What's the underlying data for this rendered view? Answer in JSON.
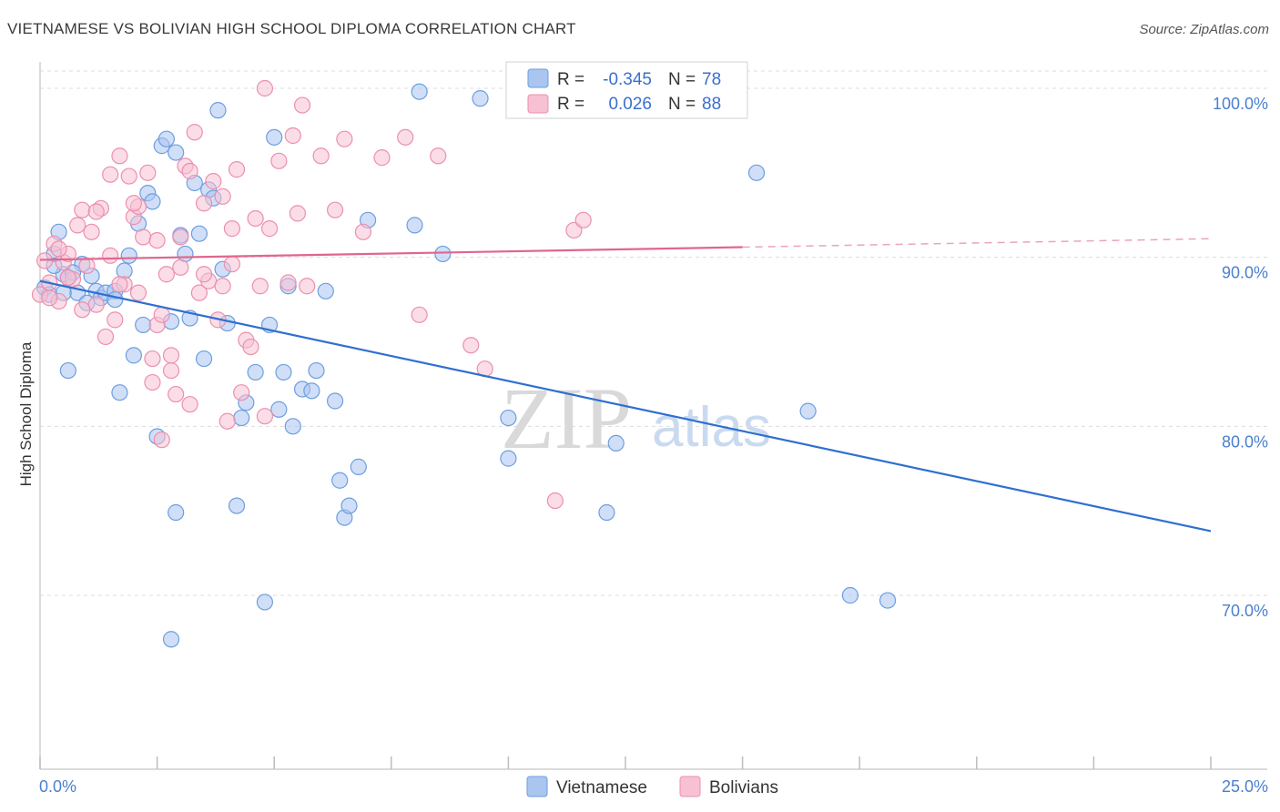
{
  "header": {
    "title": "VIETNAMESE VS BOLIVIAN HIGH SCHOOL DIPLOMA CORRELATION CHART",
    "source": "Source: ZipAtlas.com"
  },
  "watermark": {
    "zip": "ZIP",
    "atlas": "atlas"
  },
  "legend": {
    "rows": [
      {
        "r_label": "R =",
        "r_value": "-0.345",
        "n_label": "N =",
        "n_value": "78",
        "color": "#a9c5f0",
        "stroke": "#6d9ee0"
      },
      {
        "r_label": "R =",
        "r_value": "0.026",
        "n_label": "N =",
        "n_value": "88",
        "color": "#f7c1d3",
        "stroke": "#ec8fae"
      }
    ]
  },
  "chart_data": {
    "type": "scatter",
    "title": "VIETNAMESE VS BOLIVIAN HIGH SCHOOL DIPLOMA CORRELATION CHART",
    "xlabel": "",
    "ylabel": "High School Diploma",
    "xlim": [
      0,
      25
    ],
    "ylim": [
      60,
      101.5
    ],
    "x_tick_labels": [
      "0.0%",
      "25.0%"
    ],
    "y_ticks": [
      70,
      80,
      90,
      100
    ],
    "y_tick_labels": [
      "70.0%",
      "80.0%",
      "90.0%",
      "100.0%"
    ],
    "grid": true,
    "legend_position": "top-center",
    "series": [
      {
        "name": "Vietnamese",
        "color": "#a9c5f0",
        "stroke": "#6d9ee0",
        "trend": {
          "x": [
            0,
            25
          ],
          "y": [
            88.6,
            73.8
          ],
          "color": "#2f6fd0"
        },
        "points": [
          [
            0.1,
            88.2
          ],
          [
            0.2,
            87.8
          ],
          [
            0.3,
            90.2
          ],
          [
            0.4,
            91.5
          ],
          [
            0.5,
            89.0
          ],
          [
            0.6,
            88.8
          ],
          [
            0.8,
            87.9
          ],
          [
            0.9,
            89.6
          ],
          [
            1.1,
            88.9
          ],
          [
            1.2,
            88.0
          ],
          [
            1.3,
            87.6
          ],
          [
            1.4,
            87.9
          ],
          [
            1.6,
            88.0
          ],
          [
            1.6,
            87.5
          ],
          [
            1.8,
            89.2
          ],
          [
            1.9,
            90.1
          ],
          [
            2.0,
            84.2
          ],
          [
            2.1,
            92.0
          ],
          [
            2.2,
            86.0
          ],
          [
            2.3,
            93.8
          ],
          [
            2.4,
            93.3
          ],
          [
            2.5,
            79.4
          ],
          [
            2.6,
            96.6
          ],
          [
            2.7,
            97.0
          ],
          [
            2.8,
            86.2
          ],
          [
            2.9,
            96.2
          ],
          [
            3.0,
            91.3
          ],
          [
            3.1,
            90.2
          ],
          [
            3.2,
            86.4
          ],
          [
            3.3,
            94.4
          ],
          [
            3.4,
            91.4
          ],
          [
            3.5,
            84.0
          ],
          [
            3.6,
            94.0
          ],
          [
            3.7,
            93.5
          ],
          [
            3.8,
            98.7
          ],
          [
            3.9,
            89.3
          ],
          [
            4.0,
            86.1
          ],
          [
            4.2,
            75.3
          ],
          [
            4.3,
            80.5
          ],
          [
            4.4,
            81.4
          ],
          [
            4.6,
            83.2
          ],
          [
            4.8,
            69.6
          ],
          [
            4.9,
            86.0
          ],
          [
            5.0,
            97.1
          ],
          [
            5.1,
            81.0
          ],
          [
            5.2,
            83.2
          ],
          [
            5.3,
            88.3
          ],
          [
            5.4,
            80.0
          ],
          [
            5.6,
            82.2
          ],
          [
            5.8,
            82.1
          ],
          [
            5.9,
            83.3
          ],
          [
            6.1,
            88.0
          ],
          [
            6.3,
            81.5
          ],
          [
            6.4,
            76.8
          ],
          [
            6.5,
            74.6
          ],
          [
            6.6,
            75.3
          ],
          [
            6.8,
            77.6
          ],
          [
            7.0,
            92.2
          ],
          [
            8.0,
            91.9
          ],
          [
            8.1,
            99.8
          ],
          [
            8.6,
            90.2
          ],
          [
            9.4,
            99.4
          ],
          [
            10.0,
            80.5
          ],
          [
            10.0,
            78.1
          ],
          [
            12.1,
            74.9
          ],
          [
            12.3,
            79.0
          ],
          [
            15.3,
            95.0
          ],
          [
            16.4,
            80.9
          ],
          [
            17.3,
            70.0
          ],
          [
            18.1,
            69.7
          ],
          [
            2.8,
            67.4
          ],
          [
            2.9,
            74.9
          ],
          [
            0.6,
            83.3
          ],
          [
            1.7,
            82.0
          ],
          [
            0.3,
            89.5
          ],
          [
            0.5,
            87.9
          ],
          [
            0.7,
            89.1
          ],
          [
            1.0,
            87.3
          ]
        ]
      },
      {
        "name": "Bolivians",
        "color": "#f7c1d3",
        "stroke": "#ec8fae",
        "trend": {
          "x": [
            0,
            15
          ],
          "y": [
            89.85,
            90.6
          ],
          "dash_to": [
            25,
            91.1
          ],
          "color": "#e0668f"
        },
        "points": [
          [
            0.0,
            87.8
          ],
          [
            0.1,
            89.8
          ],
          [
            0.2,
            88.5
          ],
          [
            0.3,
            90.8
          ],
          [
            0.4,
            87.4
          ],
          [
            0.5,
            89.7
          ],
          [
            0.6,
            90.2
          ],
          [
            0.7,
            88.7
          ],
          [
            0.8,
            91.9
          ],
          [
            0.9,
            92.8
          ],
          [
            1.0,
            89.5
          ],
          [
            1.1,
            91.5
          ],
          [
            1.2,
            87.2
          ],
          [
            1.3,
            92.9
          ],
          [
            1.4,
            85.3
          ],
          [
            1.5,
            90.1
          ],
          [
            1.5,
            94.9
          ],
          [
            1.6,
            86.3
          ],
          [
            1.7,
            96.0
          ],
          [
            1.8,
            88.4
          ],
          [
            1.9,
            94.8
          ],
          [
            2.0,
            92.4
          ],
          [
            2.1,
            87.9
          ],
          [
            2.1,
            93.0
          ],
          [
            2.2,
            91.2
          ],
          [
            2.3,
            95.0
          ],
          [
            2.4,
            82.6
          ],
          [
            2.4,
            84.0
          ],
          [
            2.5,
            86.0
          ],
          [
            2.5,
            91.0
          ],
          [
            2.6,
            79.2
          ],
          [
            2.6,
            86.6
          ],
          [
            2.7,
            89.0
          ],
          [
            2.8,
            83.3
          ],
          [
            2.8,
            84.2
          ],
          [
            2.9,
            81.9
          ],
          [
            3.0,
            91.2
          ],
          [
            3.0,
            89.4
          ],
          [
            3.1,
            95.4
          ],
          [
            3.2,
            81.3
          ],
          [
            3.2,
            95.1
          ],
          [
            3.3,
            97.4
          ],
          [
            3.4,
            87.9
          ],
          [
            3.5,
            93.2
          ],
          [
            3.6,
            88.6
          ],
          [
            3.7,
            94.5
          ],
          [
            3.8,
            86.3
          ],
          [
            3.9,
            88.3
          ],
          [
            3.9,
            93.6
          ],
          [
            4.0,
            80.3
          ],
          [
            4.1,
            91.7
          ],
          [
            4.2,
            95.2
          ],
          [
            4.3,
            82.0
          ],
          [
            4.4,
            85.1
          ],
          [
            4.5,
            84.7
          ],
          [
            4.6,
            92.3
          ],
          [
            4.7,
            88.3
          ],
          [
            4.8,
            100.0
          ],
          [
            4.8,
            80.6
          ],
          [
            4.9,
            91.7
          ],
          [
            5.1,
            95.7
          ],
          [
            5.3,
            88.5
          ],
          [
            5.4,
            97.2
          ],
          [
            5.5,
            92.6
          ],
          [
            5.6,
            99.0
          ],
          [
            5.7,
            88.3
          ],
          [
            6.0,
            96.0
          ],
          [
            6.3,
            92.8
          ],
          [
            6.5,
            97.0
          ],
          [
            6.9,
            91.5
          ],
          [
            7.3,
            95.9
          ],
          [
            7.8,
            97.1
          ],
          [
            8.1,
            86.6
          ],
          [
            8.5,
            96.0
          ],
          [
            9.2,
            84.8
          ],
          [
            9.5,
            83.4
          ],
          [
            11.0,
            75.6
          ],
          [
            11.4,
            91.6
          ],
          [
            11.6,
            92.2
          ],
          [
            0.2,
            87.6
          ],
          [
            0.4,
            90.5
          ],
          [
            0.6,
            88.8
          ],
          [
            0.9,
            86.9
          ],
          [
            1.2,
            92.7
          ],
          [
            1.7,
            88.4
          ],
          [
            2.0,
            93.2
          ],
          [
            3.5,
            89.0
          ],
          [
            4.1,
            89.6
          ]
        ]
      }
    ]
  },
  "bottom_legend": [
    {
      "label": "Vietnamese",
      "color": "#a9c5f0",
      "stroke": "#6d9ee0"
    },
    {
      "label": "Bolivians",
      "color": "#f7c1d3",
      "stroke": "#ec8fae"
    }
  ]
}
